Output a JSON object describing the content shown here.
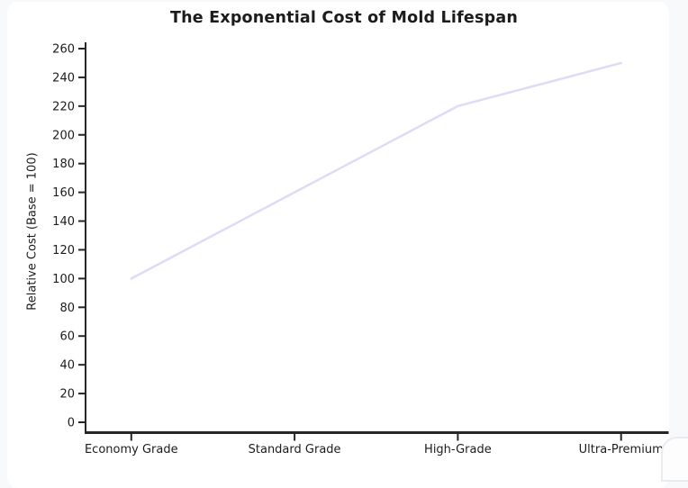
{
  "page": {
    "background_color": "#f8f9fa",
    "card_color": "#ffffff"
  },
  "chart_data": {
    "type": "line",
    "title": "The Exponential Cost of Mold Lifespan",
    "xlabel": "",
    "ylabel": "Relative Cost (Base = 100)",
    "categories": [
      "Economy Grade",
      "Standard Grade",
      "High-Grade",
      "Ultra-Premium"
    ],
    "series": [
      {
        "name": "Relative Cost",
        "values": [
          100,
          160,
          220,
          250
        ]
      }
    ],
    "ylim": [
      0,
      260
    ],
    "yticks": [
      0,
      20,
      40,
      60,
      80,
      100,
      120,
      140,
      160,
      180,
      200,
      220,
      240,
      260
    ],
    "grid": false,
    "legend": "none",
    "line_color": "#dcdcf7",
    "axis_color": "#262626",
    "text_color": "#1c1c1c"
  }
}
